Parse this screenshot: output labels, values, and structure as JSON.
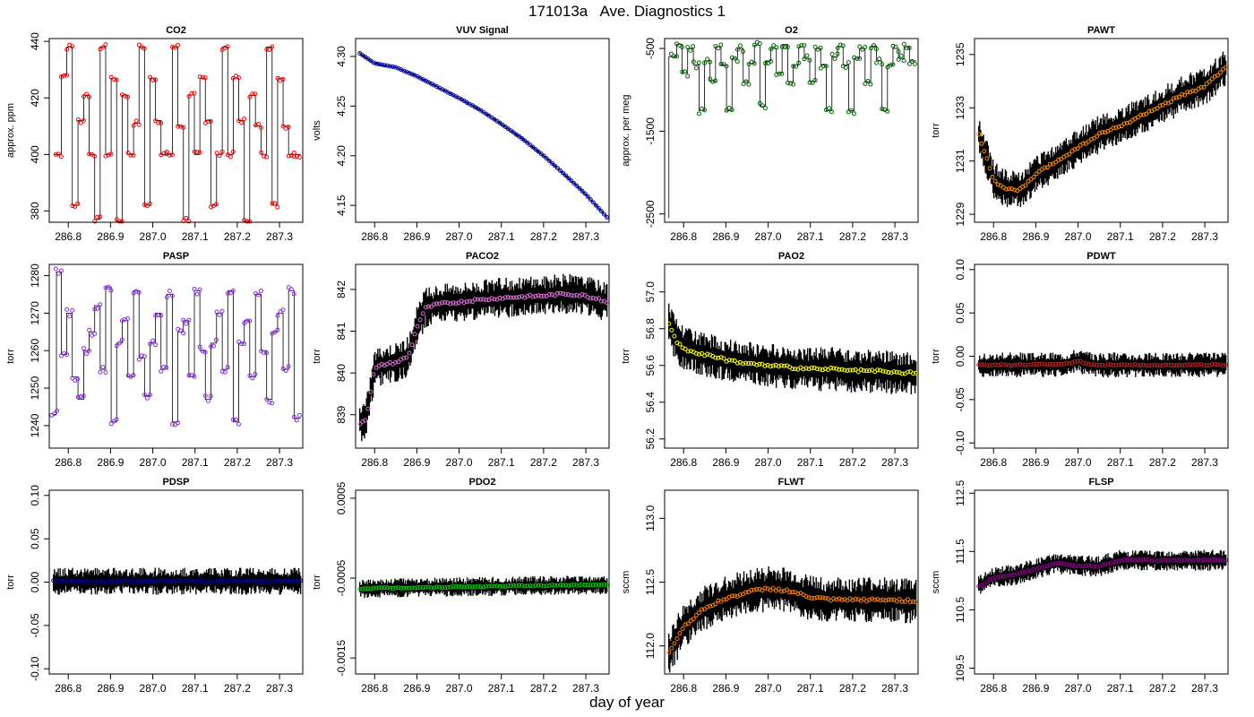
{
  "title": "171013a   Ave. Diagnostics 1",
  "xlabel": "day of year",
  "x_ticks": [
    286.8,
    286.9,
    287.0,
    287.1,
    287.2,
    287.3
  ],
  "chart_data": [
    {
      "type": "line",
      "title": "CO2",
      "ylabel": "approx. ppm",
      "color": "#ff0000",
      "xlim": [
        286.755,
        287.355
      ],
      "ylim": [
        376,
        441
      ],
      "yticks": [
        380,
        400,
        420,
        440
      ],
      "ytick_labels": [
        "380",
        "400",
        "420",
        "440"
      ],
      "markers": {
        "x": [
          286.777,
          286.79,
          286.803,
          286.816,
          286.83,
          286.843,
          286.856,
          286.869,
          286.882,
          286.895,
          286.908,
          286.921,
          286.934,
          286.948,
          286.961,
          286.974,
          286.987,
          287.0,
          287.013,
          287.026,
          287.04,
          287.053,
          287.066,
          287.079,
          287.092,
          287.105,
          287.118,
          287.131,
          287.144,
          287.158,
          287.171,
          287.184,
          287.197,
          287.21,
          287.223,
          287.236,
          287.25,
          287.263,
          287.276,
          287.289,
          287.302,
          287.315,
          287.328,
          287.341
        ],
        "y": [
          400,
          428,
          438,
          382,
          412,
          421,
          400,
          377,
          438,
          400,
          427,
          376,
          421,
          400,
          411,
          438,
          382,
          427,
          412,
          400,
          400,
          438,
          410,
          377,
          421,
          400,
          427,
          412,
          382,
          400,
          438,
          400,
          427,
          412,
          376,
          421,
          410,
          400,
          438,
          382,
          427,
          410,
          400,
          400
        ]
      },
      "spread": 1
    },
    {
      "type": "line",
      "title": "VUV Signal",
      "ylabel": "volts",
      "color": "#0000cd",
      "xlim": [
        286.755,
        287.355
      ],
      "ylim": [
        4.133,
        4.318
      ],
      "yticks": [
        4.15,
        4.2,
        4.25,
        4.3
      ],
      "ytick_labels": [
        "4.15",
        "4.20",
        "4.25",
        "4.30"
      ],
      "curve": {
        "x": [
          286.765,
          286.8,
          286.85,
          286.9,
          286.95,
          287.0,
          287.05,
          287.1,
          287.15,
          287.2,
          287.25,
          287.3,
          287.35
        ],
        "y": [
          4.303,
          4.293,
          4.289,
          4.28,
          4.269,
          4.258,
          4.246,
          4.232,
          4.217,
          4.2,
          4.181,
          4.161,
          4.138
        ]
      },
      "spread": 0.001
    },
    {
      "type": "line",
      "title": "O2",
      "ylabel": "approx. per meg",
      "color": "#006400",
      "xlim": [
        286.755,
        287.355
      ],
      "ylim": [
        -2600,
        -380
      ],
      "yticks": [
        -2500,
        -1500,
        -500
      ],
      "ytick_labels": [
        "-2500",
        "-1500",
        "-500"
      ],
      "markers": {
        "x": [
          286.777,
          286.79,
          286.803,
          286.816,
          286.83,
          286.843,
          286.856,
          286.869,
          286.882,
          286.895,
          286.908,
          286.921,
          286.934,
          286.948,
          286.961,
          286.974,
          286.987,
          287.0,
          287.013,
          287.026,
          287.04,
          287.053,
          287.066,
          287.079,
          287.092,
          287.105,
          287.118,
          287.131,
          287.144,
          287.158,
          287.171,
          287.184,
          287.197,
          287.21,
          287.223,
          287.236,
          287.25,
          287.263,
          287.276,
          287.289,
          287.302,
          287.315,
          287.328,
          287.341
        ],
        "y": [
          -600,
          -450,
          -800,
          -500,
          -700,
          -1250,
          -650,
          -900,
          -480,
          -700,
          -1250,
          -620,
          -500,
          -900,
          -680,
          -460,
          -1200,
          -650,
          -500,
          -800,
          -450,
          -900,
          -700,
          -480,
          -620,
          -900,
          -500,
          -700,
          -1250,
          -600,
          -480,
          -700,
          -1250,
          -620,
          -500,
          -900,
          -470,
          -650,
          -1250,
          -700,
          -500,
          -620,
          -480,
          -650
        ]
      },
      "spread": 40
    },
    {
      "type": "line",
      "title": "PAWT",
      "ylabel": "torr",
      "color": "#ff8c00",
      "xlim": [
        286.755,
        287.355
      ],
      "ylim": [
        1228.7,
        1235.6
      ],
      "yticks": [
        1229,
        1231,
        1233,
        1235
      ],
      "ytick_labels": [
        "1229",
        "1231",
        "1233",
        "1235"
      ],
      "curve": {
        "x": [
          286.765,
          286.8,
          286.82,
          286.85,
          286.87,
          286.9,
          286.95,
          287.0,
          287.05,
          287.1,
          287.15,
          287.2,
          287.25,
          287.3,
          287.35
        ],
        "y": [
          1232,
          1230.3,
          1230,
          1229.9,
          1230,
          1230.5,
          1231,
          1231.5,
          1232,
          1232.3,
          1232.7,
          1233.1,
          1233.5,
          1233.8,
          1234.5
        ]
      },
      "spread": 0.6
    },
    {
      "type": "line",
      "title": "PASP",
      "ylabel": "torr",
      "color": "#8a2be2",
      "xlim": [
        286.755,
        287.355
      ],
      "ylim": [
        1234,
        1283
      ],
      "yticks": [
        1240,
        1250,
        1260,
        1270,
        1280
      ],
      "ytick_labels": [
        "1240",
        "1250",
        "1260",
        "1270",
        "1280"
      ],
      "markers": {
        "x": [
          286.767,
          286.777,
          286.79,
          286.803,
          286.816,
          286.83,
          286.843,
          286.856,
          286.869,
          286.882,
          286.895,
          286.908,
          286.921,
          286.934,
          286.948,
          286.961,
          286.974,
          286.987,
          287.0,
          287.013,
          287.026,
          287.04,
          287.053,
          287.066,
          287.079,
          287.092,
          287.105,
          287.118,
          287.131,
          287.144,
          287.158,
          287.171,
          287.184,
          287.197,
          287.21,
          287.223,
          287.236,
          287.25,
          287.263,
          287.276,
          287.289,
          287.302,
          287.315,
          287.328,
          287.341
        ],
        "y": [
          1243,
          1281,
          1259,
          1270,
          1253,
          1247,
          1260,
          1265,
          1272,
          1255,
          1277,
          1241,
          1262,
          1268,
          1253,
          1276,
          1258,
          1248,
          1262,
          1270,
          1255,
          1275,
          1241,
          1265,
          1268,
          1253,
          1276,
          1260,
          1247,
          1262,
          1270,
          1255,
          1276,
          1241,
          1262,
          1268,
          1253,
          1275,
          1260,
          1247,
          1265,
          1270,
          1255,
          1276,
          1242
        ]
      },
      "spread": 1
    },
    {
      "type": "line",
      "title": "PACO2",
      "ylabel": "torr",
      "color": "#da70d6",
      "xlim": [
        286.755,
        287.355
      ],
      "ylim": [
        838.2,
        842.6
      ],
      "yticks": [
        839,
        840,
        841,
        842
      ],
      "ytick_labels": [
        "839",
        "840",
        "841",
        "842"
      ],
      "curve": {
        "x": [
          286.765,
          286.78,
          286.79,
          286.8,
          286.82,
          286.85,
          286.88,
          286.9,
          286.92,
          286.95,
          287.0,
          287.05,
          287.1,
          287.2,
          287.25,
          287.3,
          287.35
        ],
        "y": [
          838.8,
          838.9,
          839.5,
          840.1,
          840.2,
          840.25,
          840.4,
          841.1,
          841.55,
          841.65,
          841.7,
          841.75,
          841.8,
          841.85,
          841.9,
          841.85,
          841.7
        ]
      },
      "spread": 0.4
    },
    {
      "type": "line",
      "title": "PAO2",
      "ylabel": "torr",
      "color": "#ffff00",
      "xlim": [
        286.755,
        287.355
      ],
      "ylim": [
        56.15,
        57.15
      ],
      "yticks": [
        56.2,
        56.4,
        56.6,
        56.8,
        57.0
      ],
      "ytick_labels": [
        "56.2",
        "56.4",
        "56.6",
        "56.8",
        "57.0"
      ],
      "curve": {
        "x": [
          286.765,
          286.78,
          286.8,
          286.85,
          286.9,
          286.95,
          287.0,
          287.05,
          287.1,
          287.15,
          287.2,
          287.25,
          287.3,
          287.35
        ],
        "y": [
          56.83,
          56.74,
          56.69,
          56.66,
          56.63,
          56.61,
          56.6,
          56.59,
          56.58,
          56.58,
          56.57,
          56.57,
          56.56,
          56.56
        ]
      },
      "spread": 0.1
    },
    {
      "type": "line",
      "title": "PDWT",
      "ylabel": "torr",
      "color": "#b22222",
      "xlim": [
        286.755,
        287.355
      ],
      "ylim": [
        -0.106,
        0.106
      ],
      "yticks": [
        -0.1,
        -0.05,
        0.0,
        0.05,
        0.1
      ],
      "ytick_labels": [
        "-0.10",
        "-0.05",
        "0.00",
        "0.05",
        "0.10"
      ],
      "curve": {
        "x": [
          286.765,
          286.9,
          286.97,
          287.0,
          287.03,
          287.2,
          287.35
        ],
        "y": [
          -0.01,
          -0.01,
          -0.009,
          -0.005,
          -0.01,
          -0.01,
          -0.01
        ]
      },
      "spread": 0.012
    },
    {
      "type": "line",
      "title": "PDSP",
      "ylabel": "torr",
      "color": "#00008b",
      "xlim": [
        286.755,
        287.355
      ],
      "ylim": [
        -0.106,
        0.106
      ],
      "yticks": [
        -0.1,
        -0.05,
        0.0,
        0.05,
        0.1
      ],
      "ytick_labels": [
        "-0.10",
        "-0.05",
        "0.00",
        "0.05",
        "0.10"
      ],
      "curve": {
        "x": [
          286.765,
          287.35
        ],
        "y": [
          0.001,
          0.001
        ]
      },
      "spread": 0.013
    },
    {
      "type": "line",
      "title": "PDO2",
      "ylabel": "torr",
      "color": "#00cd00",
      "xlim": [
        286.755,
        287.355
      ],
      "ylim": [
        -0.0017,
        0.0006
      ],
      "yticks": [
        -0.0015,
        -0.0005,
        0.0005
      ],
      "ytick_labels": [
        "-0.0015",
        "-0.0005",
        "0.0005"
      ],
      "curve": {
        "x": [
          286.765,
          287.35
        ],
        "y": [
          -0.00063,
          -0.00058
        ]
      },
      "spread": 0.0001
    },
    {
      "type": "line",
      "title": "FLWT",
      "ylabel": "sccm",
      "color": "#ff7f00",
      "xlim": [
        286.755,
        287.355
      ],
      "ylim": [
        111.78,
        113.22
      ],
      "yticks": [
        112.0,
        112.5,
        113.0
      ],
      "ytick_labels": [
        "112.0",
        "112.5",
        "113.0"
      ],
      "curve": {
        "x": [
          286.765,
          286.8,
          286.85,
          286.9,
          286.95,
          287.0,
          287.05,
          287.1,
          287.15,
          287.2,
          287.25,
          287.3,
          287.35
        ],
        "y": [
          111.95,
          112.15,
          112.3,
          112.37,
          112.42,
          112.45,
          112.43,
          112.38,
          112.36,
          112.36,
          112.36,
          112.36,
          112.35
        ]
      },
      "spread": 0.15
    },
    {
      "type": "line",
      "title": "FLSP",
      "ylabel": "sccm",
      "color": "#8b008b",
      "xlim": [
        286.755,
        287.355
      ],
      "ylim": [
        109.4,
        112.55
      ],
      "yticks": [
        109.5,
        110.5,
        111.5,
        112.5
      ],
      "ytick_labels": [
        "109.5",
        "110.5",
        "111.5",
        "112.5"
      ],
      "curve": {
        "x": [
          286.765,
          286.8,
          286.85,
          286.9,
          286.95,
          287.0,
          287.05,
          287.1,
          287.15,
          287.2,
          287.25,
          287.3,
          287.35
        ],
        "y": [
          110.9,
          111.05,
          111.1,
          111.2,
          111.3,
          111.25,
          111.25,
          111.35,
          111.35,
          111.35,
          111.35,
          111.35,
          111.35
        ]
      },
      "spread": 0.15
    }
  ]
}
